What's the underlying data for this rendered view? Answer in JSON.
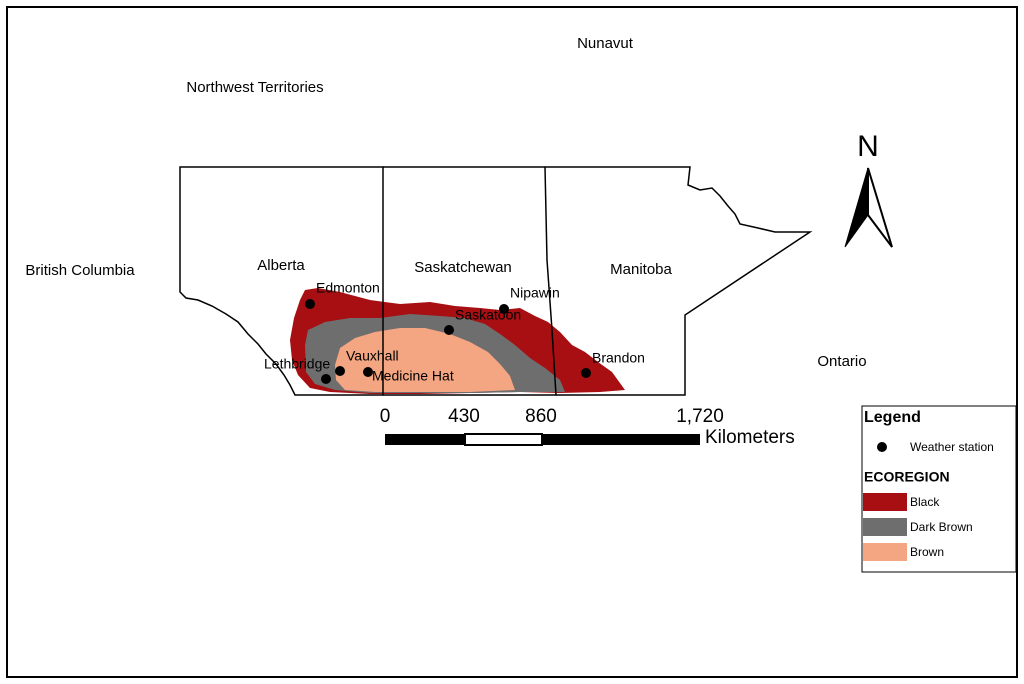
{
  "regions": [
    {
      "label": "Nunavut"
    },
    {
      "label": "Northwest Territories"
    },
    {
      "label": "British Columbia"
    },
    {
      "label": "Alberta"
    },
    {
      "label": "Saskatchewan"
    },
    {
      "label": "Manitoba"
    },
    {
      "label": "Ontario"
    }
  ],
  "stations": [
    {
      "label": "Edmonton"
    },
    {
      "label": "Nipawin"
    },
    {
      "label": "Saskatoon"
    },
    {
      "label": "Brandon"
    },
    {
      "label": "Vauxhall"
    },
    {
      "label": "Lethbridge"
    },
    {
      "label": "Medicine Hat"
    }
  ],
  "north_arrow": "N",
  "scale_bar": {
    "ticks": [
      "0",
      "430",
      "860",
      "1,720"
    ],
    "unit": "Kilometers"
  },
  "legend": {
    "title": "Legend",
    "station_item": "Weather station",
    "group_title": "ECOREGION",
    "items": [
      {
        "label": "Black",
        "color": "#a80f12"
      },
      {
        "label": "Dark Brown",
        "color": "#6e6e6e"
      },
      {
        "label": "Brown",
        "color": "#f4a582"
      }
    ]
  }
}
